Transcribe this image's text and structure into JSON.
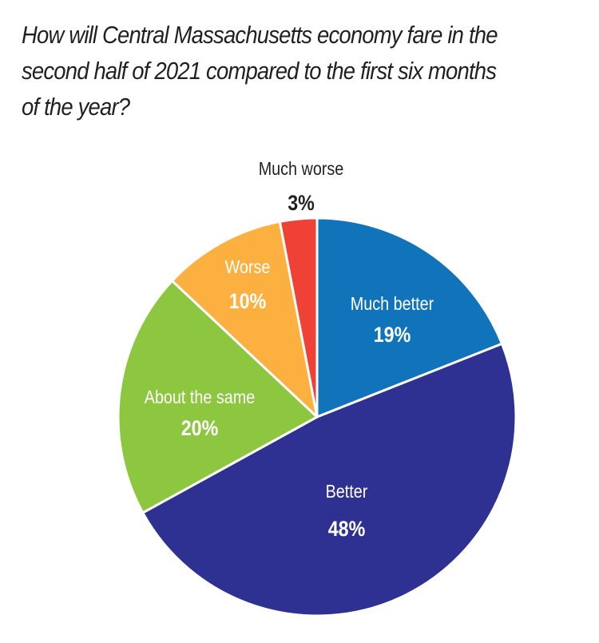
{
  "chart_data": {
    "type": "pie",
    "title": "How will Central Massachusetts economy fare in the second half of 2021 compared to the first six months of the year?",
    "title_lines": [
      "How will Central Massachusetts economy fare in the",
      "second half of 2021 compared to the first six months",
      "of the year?"
    ],
    "start_angle": "12 o'clock",
    "direction": "clockwise",
    "slices": [
      {
        "label": "Much better",
        "value": 19,
        "display": "19%",
        "color": "#1174bb",
        "label_color": "#ffffff"
      },
      {
        "label": "Better",
        "value": 48,
        "display": "48%",
        "color": "#2e3192",
        "label_color": "#ffffff"
      },
      {
        "label": "About the same",
        "value": 20,
        "display": "20%",
        "color": "#8dc63f",
        "label_color": "#ffffff"
      },
      {
        "label": "Worse",
        "value": 10,
        "display": "10%",
        "color": "#fbb040",
        "label_color": "#ffffff"
      },
      {
        "label": "Much worse",
        "value": 3,
        "display": "3%",
        "color": "#ef4136",
        "label_color": "#231f20",
        "label_outside": true
      }
    ]
  }
}
